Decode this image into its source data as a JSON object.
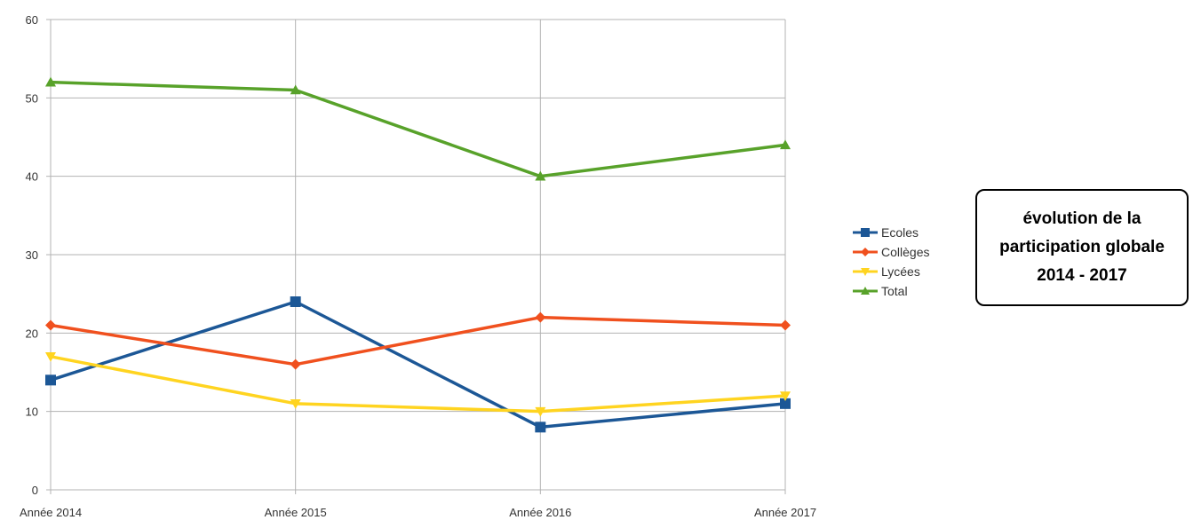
{
  "chart_data": {
    "type": "line",
    "title_lines": [
      "évolution de la",
      "participation globale",
      "2014 - 2017"
    ],
    "categories": [
      "Année 2014",
      "Année 2015",
      "Année 2016",
      "Année 2017"
    ],
    "ylim": [
      0,
      60
    ],
    "yticks": [
      "0",
      "10",
      "20",
      "30",
      "40",
      "50",
      "60"
    ],
    "grid": true,
    "legend_position": "right",
    "series": [
      {
        "name": "Ecoles",
        "color": "#1c5796",
        "marker": "square",
        "values": [
          14,
          24,
          8,
          11
        ]
      },
      {
        "name": "Collèges",
        "color": "#f0501e",
        "marker": "diamond",
        "values": [
          21,
          16,
          22,
          21
        ]
      },
      {
        "name": "Lycées",
        "color": "#ffd420",
        "marker": "triangle-down",
        "values": [
          17,
          11,
          10,
          12
        ]
      },
      {
        "name": "Total",
        "color": "#58a22a",
        "marker": "triangle-up",
        "values": [
          52,
          51,
          40,
          44
        ]
      }
    ]
  }
}
